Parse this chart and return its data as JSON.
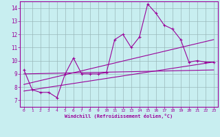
{
  "xlabel": "Windchill (Refroidissement éolien,°C)",
  "ylabel": "",
  "xlim": [
    -0.5,
    23.5
  ],
  "ylim": [
    6.5,
    14.5
  ],
  "xticks": [
    0,
    1,
    2,
    3,
    4,
    5,
    6,
    7,
    8,
    9,
    10,
    11,
    12,
    13,
    14,
    15,
    16,
    17,
    18,
    19,
    20,
    21,
    22,
    23
  ],
  "yticks": [
    7,
    8,
    9,
    10,
    11,
    12,
    13,
    14
  ],
  "bg_color": "#c8eef0",
  "line_color": "#990099",
  "line1_x": [
    0,
    1,
    2,
    3,
    4,
    5,
    6,
    7,
    8,
    9,
    10,
    11,
    12,
    13,
    14,
    15,
    16,
    17,
    18,
    19,
    20,
    21,
    22,
    23
  ],
  "line1_y": [
    9.3,
    7.8,
    7.6,
    7.6,
    7.2,
    9.0,
    10.2,
    9.0,
    9.0,
    9.0,
    9.1,
    11.6,
    12.0,
    11.0,
    11.8,
    14.3,
    13.6,
    12.7,
    12.4,
    11.6,
    9.9,
    10.0,
    9.9,
    9.9
  ],
  "line2_x": [
    0,
    23
  ],
  "line2_y": [
    7.7,
    9.9
  ],
  "line3_x": [
    0,
    23
  ],
  "line3_y": [
    8.2,
    11.6
  ],
  "line4_x": [
    0,
    23
  ],
  "line4_y": [
    9.0,
    9.3
  ]
}
